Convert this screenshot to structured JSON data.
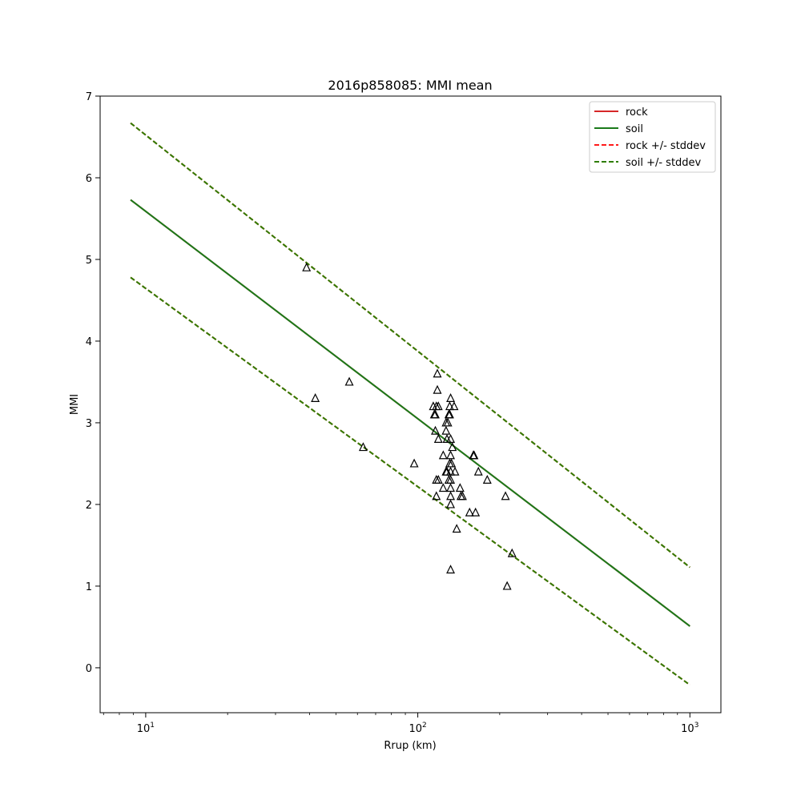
{
  "chart_data": {
    "type": "line",
    "title": "2016p858085: MMI mean",
    "xlabel": "Rrup (km)",
    "ylabel": "MMI",
    "xscale": "log",
    "xlim": [
      6.8,
      1300
    ],
    "ylim": [
      -0.55,
      7.0
    ],
    "x_ticks": [
      {
        "value": 10,
        "base": "10",
        "exp": "1"
      },
      {
        "value": 100,
        "base": "10",
        "exp": "2"
      },
      {
        "value": 1000,
        "base": "10",
        "exp": "3"
      }
    ],
    "y_ticks": [
      0,
      1,
      2,
      3,
      4,
      5,
      6,
      7
    ],
    "grid": false,
    "legend_position": "top-right",
    "series": [
      {
        "name": "rock",
        "style": "solid",
        "color": "#d62728",
        "x": [
          8.8,
          1000
        ],
        "y": [
          5.73,
          0.51
        ]
      },
      {
        "name": "soil",
        "style": "solid",
        "color": "#1a7a1a",
        "x": [
          8.8,
          1000
        ],
        "y": [
          5.73,
          0.51
        ]
      },
      {
        "name": "rock +/- stddev",
        "style": "dashed",
        "color": "#ff1a1a",
        "x": [
          8.8,
          1000
        ],
        "y_upper": [
          6.67,
          1.23
        ],
        "y_lower": [
          4.78,
          -0.21
        ]
      },
      {
        "name": "soil +/- stddev",
        "style": "dashed",
        "color": "#2e7d00",
        "x": [
          8.8,
          1000
        ],
        "y_upper": [
          6.67,
          1.23
        ],
        "y_lower": [
          4.78,
          -0.21
        ]
      }
    ],
    "observations": [
      [
        39,
        4.9
      ],
      [
        42,
        3.3
      ],
      [
        56,
        3.5
      ],
      [
        63,
        2.7
      ],
      [
        97,
        2.5
      ],
      [
        114,
        3.2
      ],
      [
        115,
        3.1
      ],
      [
        116,
        3.1
      ],
      [
        116,
        2.9
      ],
      [
        117,
        3.2
      ],
      [
        117,
        2.3
      ],
      [
        117,
        2.1
      ],
      [
        118,
        3.6
      ],
      [
        118,
        3.4
      ],
      [
        119,
        3.2
      ],
      [
        119,
        2.8
      ],
      [
        119,
        2.3
      ],
      [
        124,
        2.6
      ],
      [
        124,
        2.2
      ],
      [
        127,
        3.0
      ],
      [
        127,
        2.9
      ],
      [
        127,
        2.4
      ],
      [
        128,
        2.8
      ],
      [
        128,
        2.4
      ],
      [
        129,
        3.0
      ],
      [
        130,
        3.1
      ],
      [
        130,
        2.3
      ],
      [
        131,
        3.2
      ],
      [
        131,
        3.1
      ],
      [
        131,
        2.5
      ],
      [
        132,
        3.3
      ],
      [
        132,
        2.8
      ],
      [
        132,
        2.6
      ],
      [
        132,
        2.4
      ],
      [
        132,
        2.3
      ],
      [
        132,
        2.2
      ],
      [
        132,
        2.1
      ],
      [
        132,
        2.0
      ],
      [
        132,
        1.2
      ],
      [
        133,
        2.5
      ],
      [
        134,
        2.7
      ],
      [
        136,
        3.2
      ],
      [
        137,
        2.4
      ],
      [
        139,
        1.7
      ],
      [
        143,
        2.2
      ],
      [
        144,
        2.1
      ],
      [
        146,
        2.1
      ],
      [
        155,
        1.9
      ],
      [
        160,
        2.6
      ],
      [
        161,
        2.6
      ],
      [
        163,
        1.9
      ],
      [
        167,
        2.4
      ],
      [
        180,
        2.3
      ],
      [
        210,
        2.1
      ],
      [
        213,
        1.0
      ],
      [
        222,
        1.4
      ]
    ]
  }
}
